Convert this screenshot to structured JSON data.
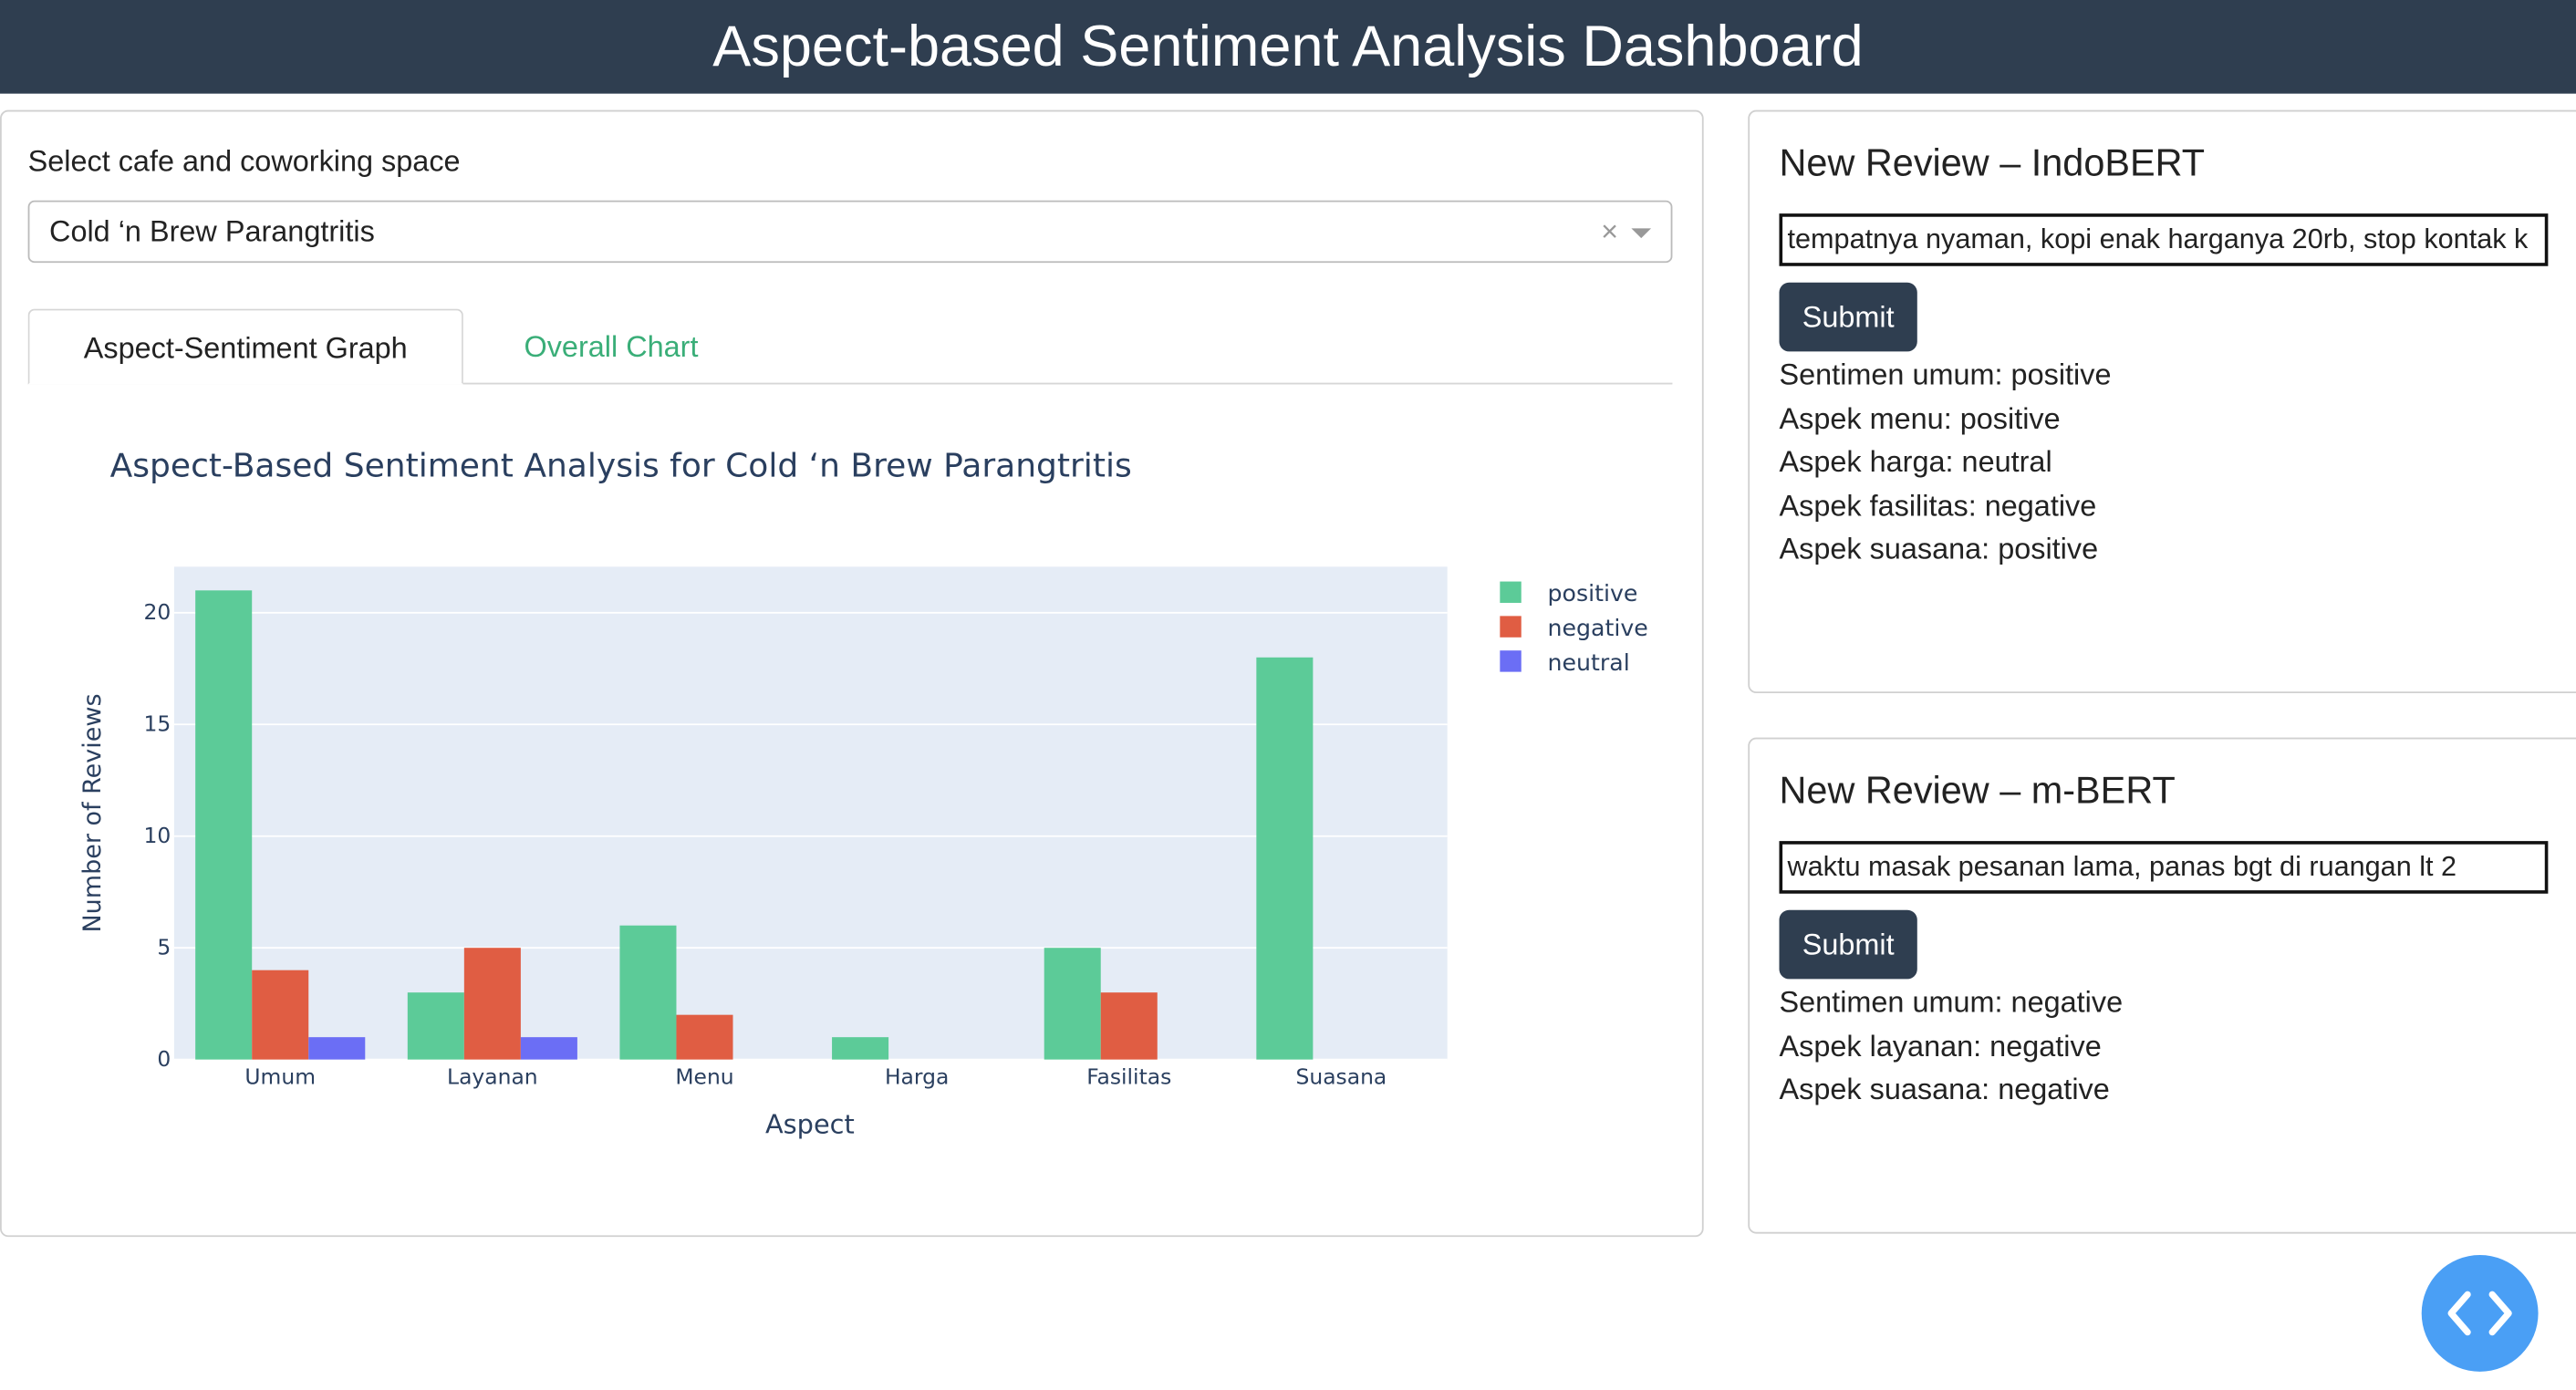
{
  "header": {
    "title": "Aspect-based Sentiment Analysis Dashboard"
  },
  "selector": {
    "label": "Select cafe and coworking space",
    "selected": "Cold ‘n Brew Parangtritis"
  },
  "tabs": [
    "Aspect-Sentiment Graph",
    "Overall Chart"
  ],
  "chart_data": {
    "type": "bar",
    "title": "Aspect-Based Sentiment Analysis for Cold ‘n Brew Parangtritis",
    "x_label": "Aspect",
    "y_label": "Number of Reviews",
    "categories": [
      "Umum",
      "Layanan",
      "Menu",
      "Harga",
      "Fasilitas",
      "Suasana"
    ],
    "series": [
      {
        "name": "positive",
        "color": "#5ccb98",
        "values": [
          21,
          3,
          6,
          1,
          5,
          18
        ]
      },
      {
        "name": "negative",
        "color": "#e05d43",
        "values": [
          4,
          5,
          2,
          0,
          3,
          0
        ]
      },
      {
        "name": "neutral",
        "color": "#6b6ef5",
        "values": [
          1,
          1,
          0,
          0,
          0,
          0
        ]
      }
    ],
    "ylim": [
      0,
      22.06
    ],
    "yticks": [
      0,
      5,
      10,
      15,
      20
    ],
    "grid": true,
    "legend": "top-right"
  },
  "panels": [
    {
      "title": "New Review – IndoBERT",
      "input": "tempatnya nyaman, kopi enak harganya 20rb, stop kontak k",
      "button": "Submit",
      "results": [
        "Sentimen umum: positive",
        "Aspek menu: positive",
        "Aspek harga: neutral",
        "Aspek fasilitas: negative",
        "Aspek suasana: positive"
      ]
    },
    {
      "title": "New Review – m-BERT",
      "input": "waktu masak pesanan lama, panas bgt di ruangan lt 2",
      "button": "Submit",
      "results": [
        "Sentimen umum: negative",
        "Aspek layanan: negative",
        "Aspek suasana: negative"
      ]
    }
  ]
}
